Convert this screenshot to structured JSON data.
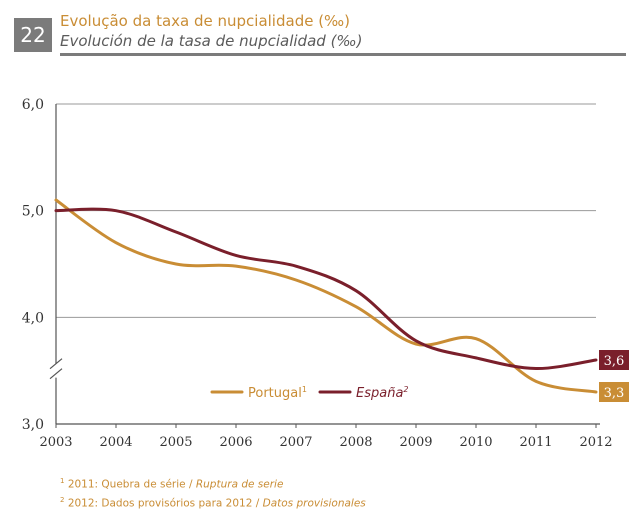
{
  "header": {
    "number": "22",
    "title_pt": "Evolução da taxa de nupcialidade (‰)",
    "title_es": "Evolución de la tasa de nupcialidad (‰)"
  },
  "chart_data": {
    "type": "line",
    "title": "Evolução da taxa de nupcialidade (‰)",
    "subtitle": "Evolución de la tasa de nupcialidad (‰)",
    "x": [
      "2003",
      "2004",
      "2005",
      "2006",
      "2007",
      "2008",
      "2009",
      "2010",
      "2011",
      "2012"
    ],
    "y_ticks": [
      "3,0",
      "4,0",
      "5,0",
      "6,0"
    ],
    "ylim": [
      3.0,
      6.0
    ],
    "y_axis_break": true,
    "grid": true,
    "legend_position": "bottom-center",
    "series": [
      {
        "name": "Portugal",
        "superscript": "1",
        "color": "#c98d35",
        "values": [
          5.1,
          4.7,
          4.5,
          4.48,
          4.35,
          4.1,
          3.75,
          3.8,
          3.4,
          3.3
        ],
        "end_label": "3,3"
      },
      {
        "name": "España",
        "superscript": "2",
        "color": "#7a1f2b",
        "values": [
          5.0,
          5.0,
          4.8,
          4.58,
          4.48,
          4.25,
          3.78,
          3.62,
          3.52,
          3.6
        ],
        "end_label": "3,6"
      }
    ]
  },
  "footnotes": [
    {
      "mark": "1",
      "text_pt": "2011: Quebra de série",
      "sep": " / ",
      "text_es": "Ruptura de serie"
    },
    {
      "mark": "2",
      "text_pt": "2012: Dados provisórios para 2012",
      "sep": " / ",
      "text_es": "Datos provisionales"
    }
  ]
}
